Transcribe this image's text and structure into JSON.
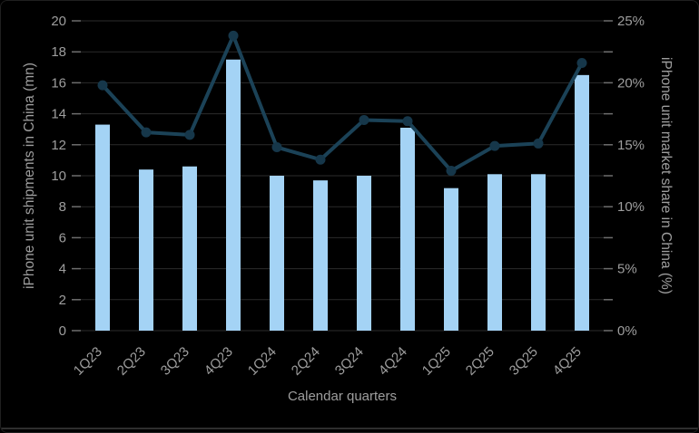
{
  "page": {
    "background": "#000000",
    "frame_border": "#1f1f1f",
    "bottom_edge": "#2e2e2e"
  },
  "chart": {
    "colors": {
      "bar": "#a4d3f5",
      "line": "#1b4257",
      "marker": "#16374a",
      "grid": "#2b2b2b",
      "tick": "#6e6e6e",
      "text": "#9e9e9e"
    }
  },
  "chart_data": {
    "type": "combo-bar-line-dual-axis",
    "title": "",
    "legend": "none",
    "grid": "horizontal",
    "categories": [
      "1Q23",
      "2Q23",
      "3Q23",
      "4Q23",
      "1Q24",
      "2Q24",
      "3Q24",
      "4Q24",
      "1Q25",
      "2Q25",
      "3Q25",
      "4Q25"
    ],
    "series": [
      {
        "name": "iPhone unit shipments in China (mn)",
        "type": "bar",
        "axis": "left",
        "values": [
          13.3,
          10.4,
          10.6,
          17.5,
          10.0,
          9.7,
          10.0,
          13.1,
          9.2,
          10.1,
          10.1,
          16.5
        ]
      },
      {
        "name": "iPhone unit market share in China (%)",
        "type": "line",
        "axis": "right",
        "values": [
          19.8,
          16.0,
          15.8,
          23.8,
          14.8,
          13.8,
          17.0,
          16.9,
          12.9,
          14.9,
          15.1,
          21.6
        ]
      }
    ],
    "xlabel": "Calendar quarters",
    "ylabel_left": "iPhone unit shipments in China (mn)",
    "ylabel_right": "iPhone unit market share in China (%)",
    "ylim_left": [
      0,
      20
    ],
    "ylim_right": [
      0,
      25
    ],
    "yticks_left": [
      0,
      2,
      4,
      6,
      8,
      10,
      12,
      14,
      16,
      18,
      20
    ],
    "yticks_right_minor": [
      0,
      2.5,
      5,
      7.5,
      10,
      12.5,
      15,
      17.5,
      20,
      22.5,
      25
    ],
    "yticks_right": [
      {
        "value": 0,
        "label": "0%"
      },
      {
        "value": 5,
        "label": "5%"
      },
      {
        "value": 10,
        "label": "10%"
      },
      {
        "value": 15,
        "label": "15%"
      },
      {
        "value": 20,
        "label": "20%"
      },
      {
        "value": 25,
        "label": "25%"
      }
    ]
  }
}
